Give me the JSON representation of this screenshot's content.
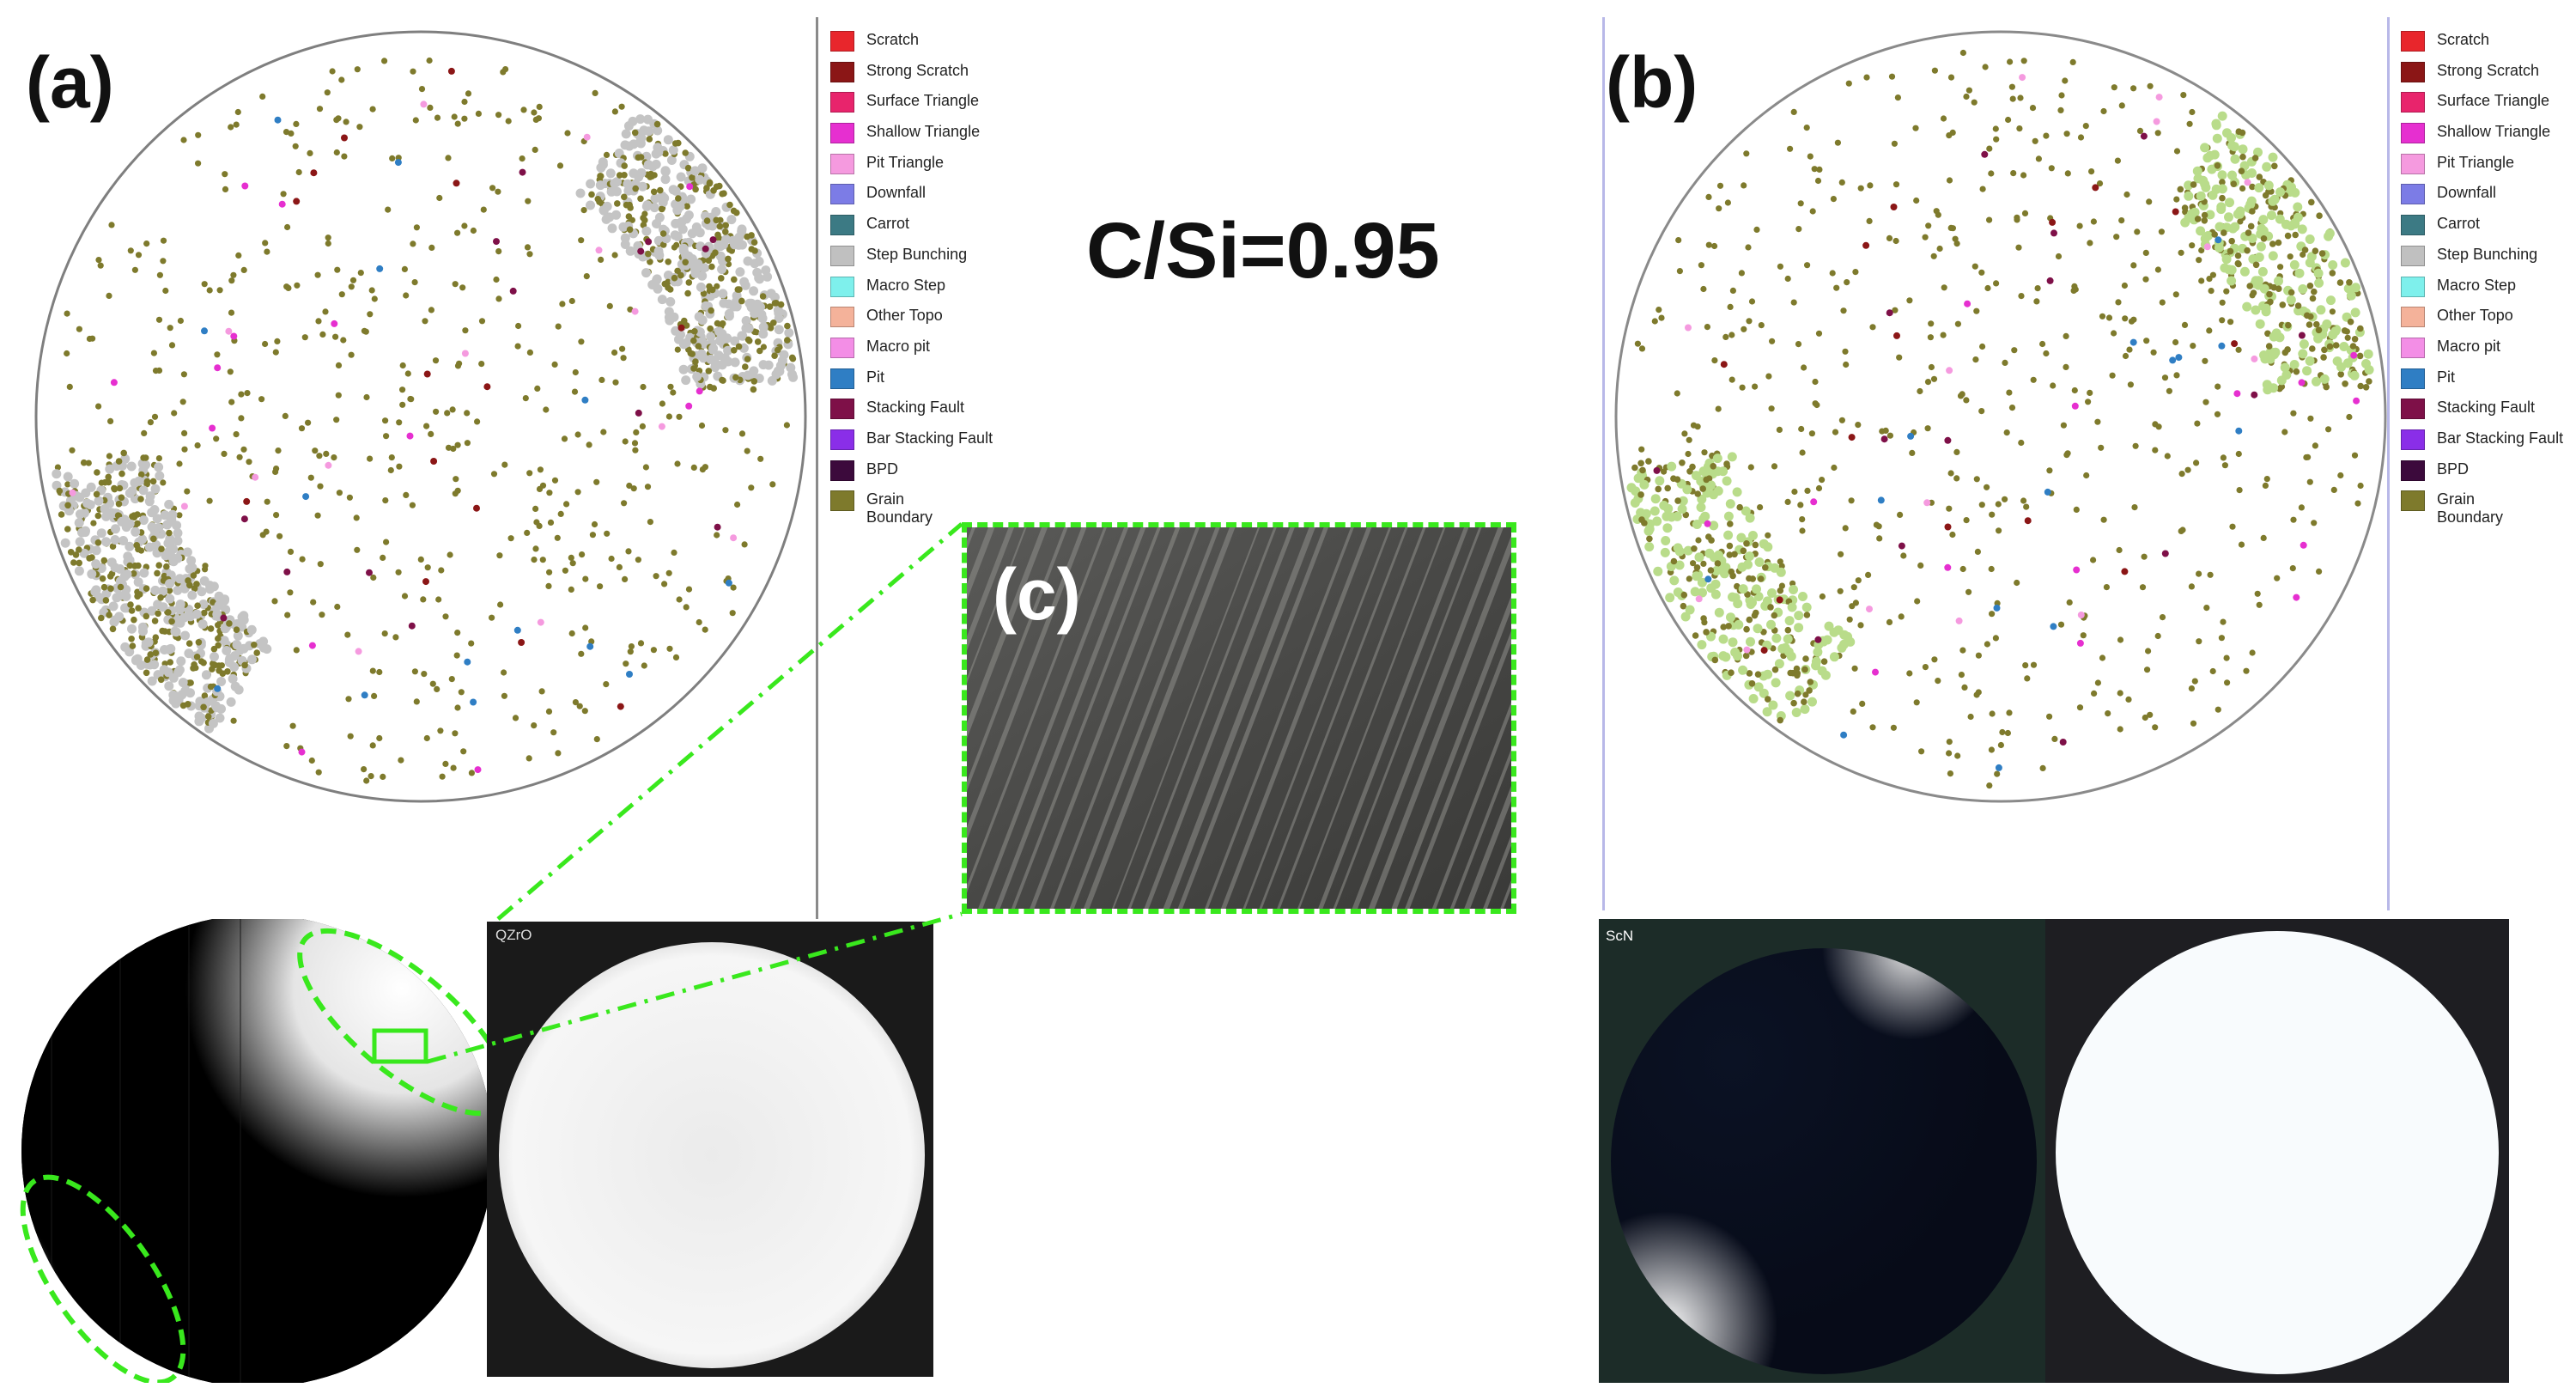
{
  "panels": {
    "a_label": "(a)",
    "b_label": "(b)",
    "c_label": "(c)",
    "ratio_text": "C/Si=0.95"
  },
  "legend": {
    "items": [
      {
        "label": "Scratch",
        "color": "#e8262c"
      },
      {
        "label": "Strong Scratch",
        "color": "#8b1616"
      },
      {
        "label": "Surface Triangle",
        "color": "#e8246c"
      },
      {
        "label": "Shallow Triangle",
        "color": "#e62fd0"
      },
      {
        "label": "Pit Triangle",
        "color": "#f59adf"
      },
      {
        "label": "Downfall",
        "color": "#7c7ce6"
      },
      {
        "label": "Carrot",
        "color": "#3c7a84"
      },
      {
        "label": "Step Bunching",
        "color": "#c0c0c0"
      },
      {
        "label": "Macro Step",
        "color": "#7ef0ec"
      },
      {
        "label": "Other Topo",
        "color": "#f4b29a"
      },
      {
        "label": "Macro pit",
        "color": "#f38ee6"
      },
      {
        "label": "Pit",
        "color": "#2f7ec4"
      },
      {
        "label": "Stacking Fault",
        "color": "#7e1048"
      },
      {
        "label": "Bar Stacking Fault",
        "color": "#8a2ee8"
      },
      {
        "label": "BPD",
        "color": "#3c0a3c"
      },
      {
        "label": "Grain Boundary",
        "color": "#7e7a2c"
      }
    ]
  },
  "photos": {
    "a_right_tag": "QZrO",
    "b_left_tag": "ScN"
  },
  "colors": {
    "grain": "#7e7a2c",
    "step": "#c4c4c4",
    "step_b": "#b9dc8a",
    "callout": "#39e81d",
    "wafer_outline": "#808080"
  }
}
